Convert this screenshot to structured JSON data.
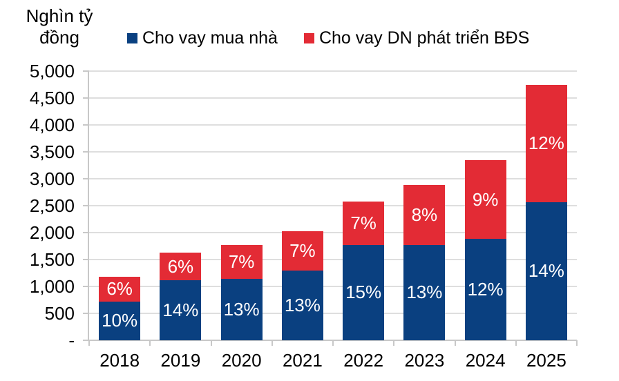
{
  "axis_title": {
    "line1": "Nghìn tỷ",
    "line2": "đồng"
  },
  "legend": [
    {
      "label": "Cho vay mua nhà",
      "color": "#0a4080"
    },
    {
      "label": "Cho vay DN phát triển BĐS",
      "color": "#e32b35"
    }
  ],
  "chart_data": {
    "type": "bar",
    "stacked": true,
    "title": "",
    "ylabel": "Nghìn tỷ đồng",
    "xlabel": "",
    "ylim": [
      0,
      5000
    ],
    "ytick_step": 500,
    "ytick_labels": [
      "-",
      "500",
      "1,000",
      "1,500",
      "2,000",
      "2,500",
      "3,000",
      "3,500",
      "4,000",
      "4,500",
      "5,000"
    ],
    "grid": true,
    "legend_position": "top",
    "categories": [
      "2018",
      "2019",
      "2020",
      "2021",
      "2022",
      "2023",
      "2024",
      "2025"
    ],
    "series": [
      {
        "name": "Cho vay mua nhà",
        "color": "#0a4080",
        "values": [
          720,
          1115,
          1140,
          1295,
          1770,
          1770,
          1885,
          2565
        ],
        "labels": [
          "10%",
          "14%",
          "13%",
          "13%",
          "15%",
          "13%",
          "12%",
          "14%"
        ]
      },
      {
        "name": "Cho vay DN phát triển BĐS",
        "color": "#e32b35",
        "values": [
          460,
          510,
          630,
          730,
          810,
          1115,
          1460,
          2180
        ],
        "labels": [
          "6%",
          "6%",
          "7%",
          "7%",
          "7%",
          "8%",
          "9%",
          "12%"
        ]
      }
    ]
  },
  "colors": {
    "gridline": "#dedede",
    "axis": "#c8c8c8",
    "bar_label_text": "#ffffff",
    "text": "#000000"
  }
}
